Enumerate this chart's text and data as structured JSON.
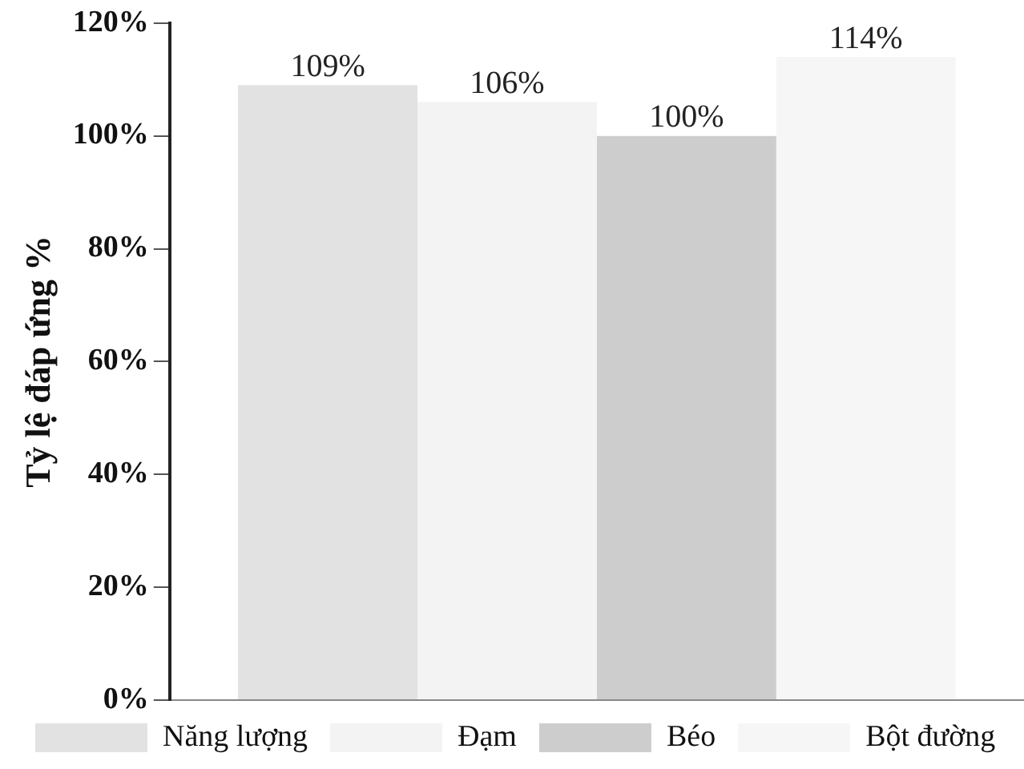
{
  "chart_data": {
    "type": "bar",
    "ylabel": "Tỷ lệ đáp ứng %",
    "categories": [
      null
    ],
    "series": [
      {
        "name": "Năng lượng",
        "color": "#e2e2e2",
        "values": [
          109
        ],
        "value_labels": [
          "109%"
        ]
      },
      {
        "name": "Đạm",
        "color": "#f3f3f3",
        "values": [
          106
        ],
        "value_labels": [
          "106%"
        ]
      },
      {
        "name": "Béo",
        "color": "#cdcdcd",
        "values": [
          100
        ],
        "value_labels": [
          "100%"
        ]
      },
      {
        "name": "Bột đường",
        "color": "#f6f6f6",
        "values": [
          114
        ],
        "value_labels": [
          "114%"
        ]
      }
    ],
    "ylim": [
      0,
      120
    ],
    "yticks": [
      {
        "value": 0,
        "label": "0%"
      },
      {
        "value": 20,
        "label": "20%"
      },
      {
        "value": 40,
        "label": "40%"
      },
      {
        "value": 60,
        "label": "60%"
      },
      {
        "value": 80,
        "label": "80%"
      },
      {
        "value": 100,
        "label": "100%"
      },
      {
        "value": 120,
        "label": "120%"
      }
    ],
    "grid": false,
    "legend": "bottom"
  }
}
